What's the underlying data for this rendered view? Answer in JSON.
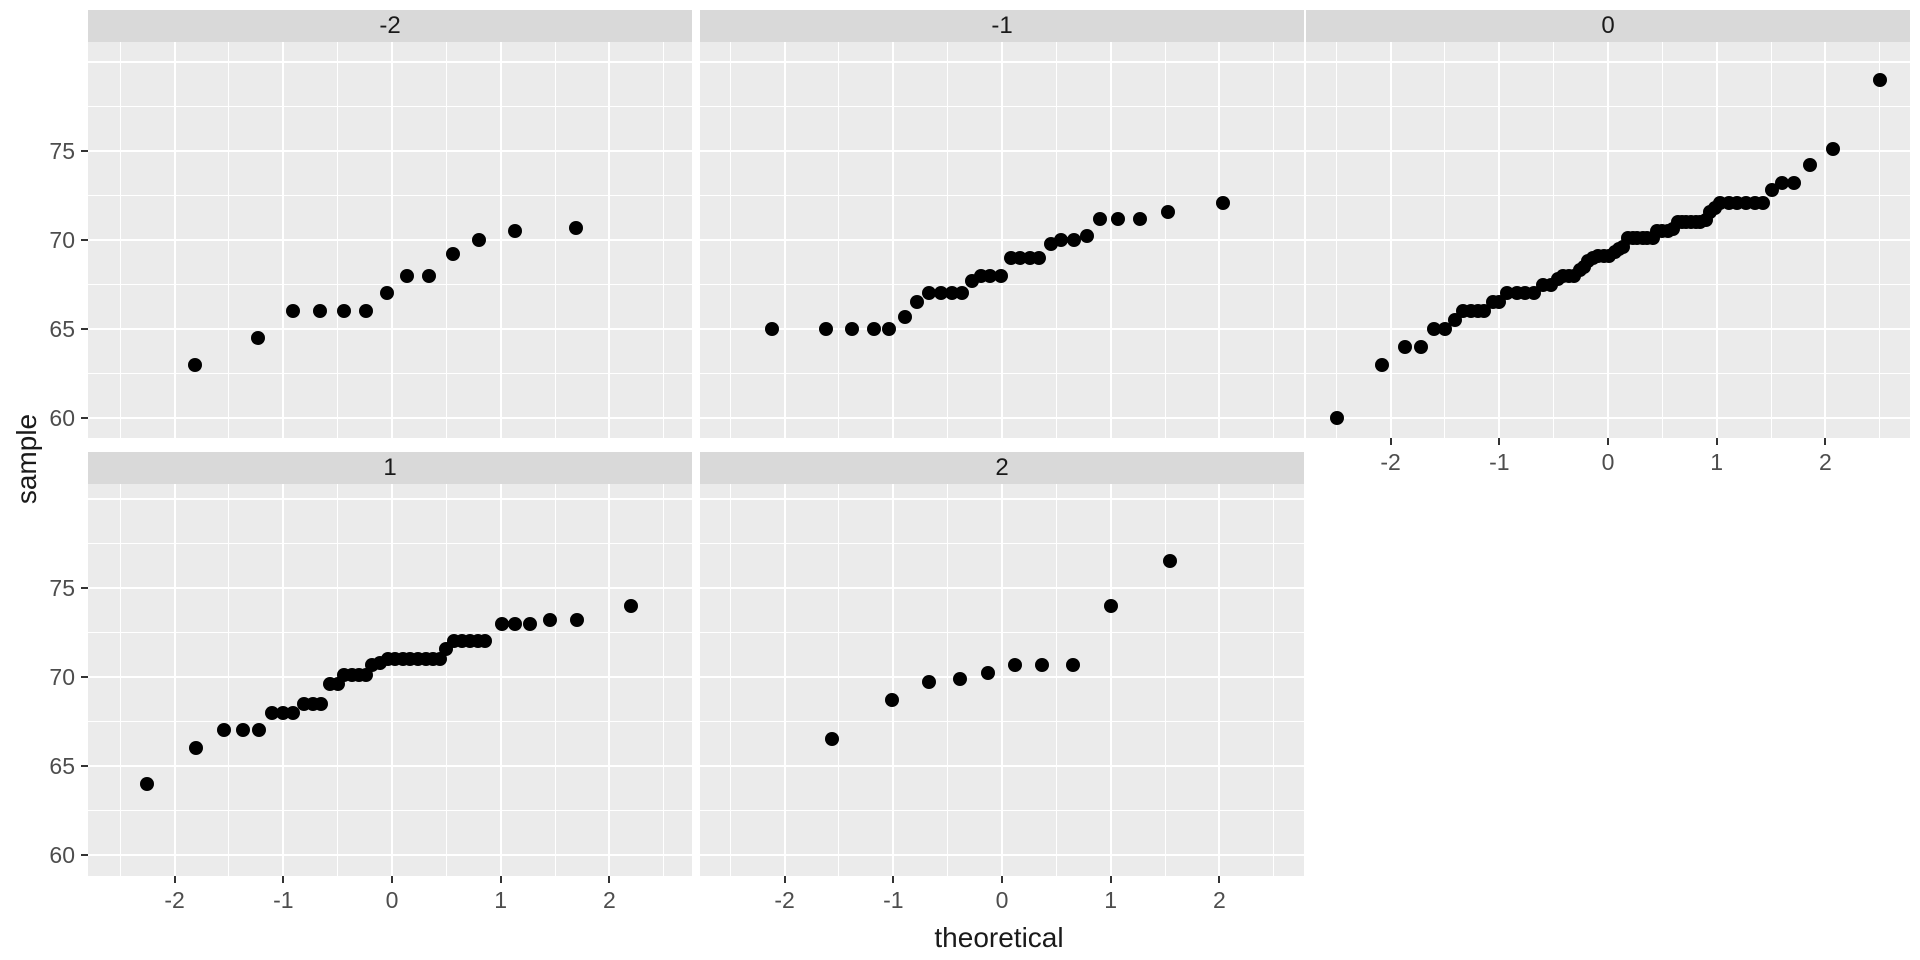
{
  "chart_data": {
    "type": "scatter",
    "title": "",
    "xlabel": "theoretical",
    "ylabel": "sample",
    "legend": "none",
    "grid": "on",
    "x_ticks": [
      -2,
      -1,
      0,
      1,
      2
    ],
    "y_ticks": [
      75,
      70,
      65,
      60
    ],
    "x_minor_ticks": [
      -2.5,
      -1.5,
      -0.5,
      0.5,
      1.5,
      2.5
    ],
    "y_major_gridlines": [
      60,
      65,
      70,
      75,
      80
    ],
    "y_minor_gridlines": [
      62.5,
      67.5,
      72.5,
      77.5
    ],
    "x_range": [
      -2.78,
      2.78
    ],
    "y_range": [
      58.9,
      81.1
    ],
    "facets": [
      {
        "label": "-2",
        "row": 0,
        "col": 0,
        "points": [
          [
            -1.81,
            63
          ],
          [
            -1.23,
            64.5
          ],
          [
            -0.91,
            66
          ],
          [
            -0.66,
            66
          ],
          [
            -0.44,
            66
          ],
          [
            -0.24,
            66
          ],
          [
            -0.05,
            67
          ],
          [
            0.14,
            68
          ],
          [
            0.34,
            68
          ],
          [
            0.56,
            69.2
          ],
          [
            0.8,
            70
          ],
          [
            1.13,
            70.5
          ],
          [
            1.69,
            70.7
          ]
        ]
      },
      {
        "label": "-1",
        "row": 0,
        "col": 1,
        "points": [
          [
            -2.12,
            65
          ],
          [
            -1.62,
            65
          ],
          [
            -1.38,
            65
          ],
          [
            -1.18,
            65
          ],
          [
            -1.04,
            65
          ],
          [
            -0.89,
            65.7
          ],
          [
            -0.78,
            66.5
          ],
          [
            -0.67,
            67
          ],
          [
            -0.56,
            67
          ],
          [
            -0.46,
            67
          ],
          [
            -0.37,
            67
          ],
          [
            -0.28,
            67.7
          ],
          [
            -0.19,
            68
          ],
          [
            -0.11,
            68
          ],
          [
            -0.01,
            68
          ],
          [
            0.08,
            69
          ],
          [
            0.17,
            69
          ],
          [
            0.26,
            69
          ],
          [
            0.34,
            69
          ],
          [
            0.45,
            69.8
          ],
          [
            0.54,
            70
          ],
          [
            0.66,
            70
          ],
          [
            0.78,
            70.2
          ],
          [
            0.9,
            71.2
          ],
          [
            1.07,
            71.2
          ],
          [
            1.27,
            71.2
          ],
          [
            1.53,
            71.6
          ],
          [
            2.03,
            72.1
          ]
        ]
      },
      {
        "label": "0",
        "row": 0,
        "col": 2,
        "points": [
          [
            -2.49,
            60
          ],
          [
            -2.08,
            63
          ],
          [
            -1.87,
            64
          ],
          [
            -1.72,
            64
          ],
          [
            -1.6,
            65
          ],
          [
            -1.5,
            65
          ],
          [
            -1.41,
            65.5
          ],
          [
            -1.33,
            66
          ],
          [
            -1.26,
            66
          ],
          [
            -1.2,
            66
          ],
          [
            -1.14,
            66
          ],
          [
            -1.06,
            66.5
          ],
          [
            -1.0,
            66.5
          ],
          [
            -0.93,
            67
          ],
          [
            -0.84,
            67
          ],
          [
            -0.76,
            67
          ],
          [
            -0.68,
            67
          ],
          [
            -0.6,
            67.5
          ],
          [
            -0.52,
            67.5
          ],
          [
            -0.46,
            67.8
          ],
          [
            -0.41,
            68
          ],
          [
            -0.36,
            68
          ],
          [
            -0.31,
            68
          ],
          [
            -0.26,
            68.3
          ],
          [
            -0.22,
            68.5
          ],
          [
            -0.18,
            68.8
          ],
          [
            -0.14,
            69
          ],
          [
            -0.09,
            69.1
          ],
          [
            -0.04,
            69.1
          ],
          [
            0.01,
            69.1
          ],
          [
            0.06,
            69.3
          ],
          [
            0.1,
            69.5
          ],
          [
            0.14,
            69.6
          ],
          [
            0.18,
            70.1
          ],
          [
            0.23,
            70.1
          ],
          [
            0.27,
            70.1
          ],
          [
            0.32,
            70.1
          ],
          [
            0.36,
            70.1
          ],
          [
            0.41,
            70.1
          ],
          [
            0.45,
            70.5
          ],
          [
            0.5,
            70.5
          ],
          [
            0.55,
            70.5
          ],
          [
            0.6,
            70.6
          ],
          [
            0.64,
            71
          ],
          [
            0.68,
            71
          ],
          [
            0.72,
            71
          ],
          [
            0.76,
            71
          ],
          [
            0.81,
            71
          ],
          [
            0.85,
            71
          ],
          [
            0.9,
            71.1
          ],
          [
            0.94,
            71.6
          ],
          [
            0.98,
            71.8
          ],
          [
            1.03,
            72.1
          ],
          [
            1.11,
            72.1
          ],
          [
            1.19,
            72.1
          ],
          [
            1.27,
            72.1
          ],
          [
            1.35,
            72.1
          ],
          [
            1.43,
            72.1
          ],
          [
            1.51,
            72.8
          ],
          [
            1.6,
            73.2
          ],
          [
            1.71,
            73.2
          ],
          [
            1.86,
            74.2
          ],
          [
            2.07,
            75.1
          ],
          [
            2.5,
            79
          ]
        ]
      },
      {
        "label": "1",
        "row": 1,
        "col": 0,
        "points": [
          [
            -2.25,
            64
          ],
          [
            -1.8,
            66
          ],
          [
            -1.55,
            67
          ],
          [
            -1.37,
            67
          ],
          [
            -1.22,
            67
          ],
          [
            -1.1,
            68
          ],
          [
            -1.0,
            68
          ],
          [
            -0.91,
            68
          ],
          [
            -0.81,
            68.5
          ],
          [
            -0.73,
            68.5
          ],
          [
            -0.65,
            68.5
          ],
          [
            -0.57,
            69.6
          ],
          [
            -0.5,
            69.6
          ],
          [
            -0.44,
            70.1
          ],
          [
            -0.37,
            70.1
          ],
          [
            -0.3,
            70.1
          ],
          [
            -0.24,
            70.1
          ],
          [
            -0.18,
            70.7
          ],
          [
            -0.11,
            70.8
          ],
          [
            -0.04,
            71
          ],
          [
            0.03,
            71
          ],
          [
            0.1,
            71
          ],
          [
            0.17,
            71
          ],
          [
            0.24,
            71
          ],
          [
            0.31,
            71
          ],
          [
            0.38,
            71
          ],
          [
            0.44,
            71
          ],
          [
            0.5,
            71.6
          ],
          [
            0.57,
            72
          ],
          [
            0.64,
            72
          ],
          [
            0.72,
            72
          ],
          [
            0.79,
            72
          ],
          [
            0.86,
            72
          ],
          [
            1.01,
            73
          ],
          [
            1.13,
            73
          ],
          [
            1.27,
            73
          ],
          [
            1.45,
            73.2
          ],
          [
            1.7,
            73.2
          ],
          [
            2.2,
            74
          ]
        ]
      },
      {
        "label": "2",
        "row": 1,
        "col": 1,
        "points": [
          [
            -1.56,
            66.5
          ],
          [
            -1.01,
            68.7
          ],
          [
            -0.67,
            69.7
          ],
          [
            -0.39,
            69.9
          ],
          [
            -0.13,
            70.2
          ],
          [
            0.12,
            70.7
          ],
          [
            0.37,
            70.7
          ],
          [
            0.65,
            70.7
          ],
          [
            1.0,
            74.0
          ],
          [
            1.55,
            76.5
          ]
        ]
      }
    ],
    "colors": {
      "point": "#000000",
      "panel_background": "#ebebeb",
      "strip_background": "#d9d9d9",
      "gridline": "#ffffff",
      "tick_label": "#4d4d4d",
      "axis_title": "#1a1a1a"
    }
  }
}
